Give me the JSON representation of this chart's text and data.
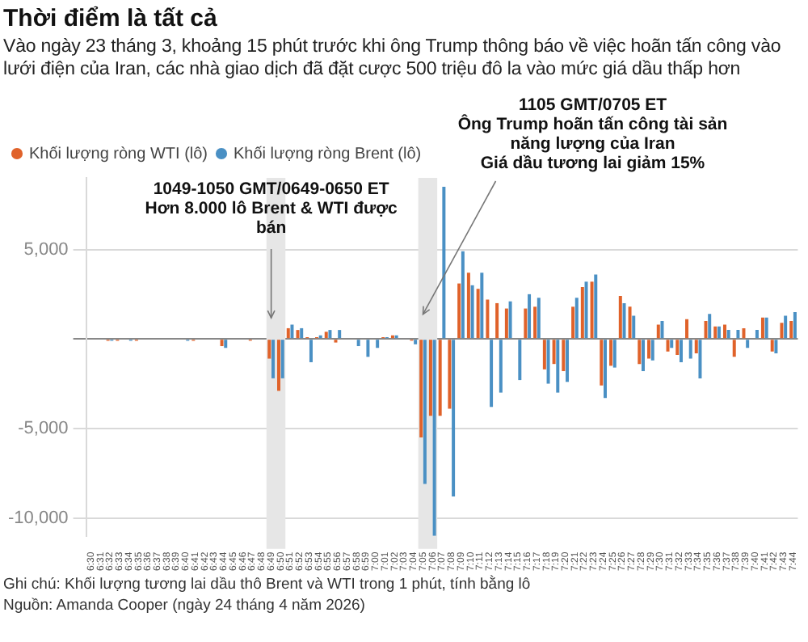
{
  "chart_data": {
    "type": "bar",
    "title": "Thời điểm là tất cả",
    "subtitle": "Vào ngày 23 tháng 3, khoảng 15 phút trước khi ông Trump thông báo về việc hoãn tấn công vào lưới điện của Iran, các nhà giao dịch đã đặt cược 500 triệu đô la vào mức giá dầu thấp hơn",
    "categories": [
      "6:30",
      "6:31",
      "6:32",
      "6:33",
      "6:34",
      "6:35",
      "6:36",
      "6:37",
      "6:38",
      "6:39",
      "6:40",
      "6:41",
      "6:42",
      "6:43",
      "6:44",
      "6:45",
      "6:46",
      "6:47",
      "6:48",
      "6:49",
      "6:50",
      "6:51",
      "6:52",
      "6:53",
      "6:54",
      "6:55",
      "6:56",
      "6:57",
      "6:58",
      "6:59",
      "7:00",
      "7:01",
      "7:02",
      "7:03",
      "7:04",
      "7:05",
      "7:06",
      "7:07",
      "7:08",
      "7:09",
      "7:10",
      "7:11",
      "7:12",
      "7:13",
      "7:14",
      "7:15",
      "7:16",
      "7:17",
      "7:18",
      "7:19",
      "7:20",
      "7:21",
      "7:22",
      "7:23",
      "7:24",
      "7:25",
      "7:26",
      "7:27",
      "7:28",
      "7:29",
      "7:30",
      "7:31",
      "7:32",
      "7:33",
      "7:34",
      "7:35",
      "7:36",
      "7:37",
      "7:38",
      "7:39",
      "7:40",
      "7:41",
      "7:42",
      "7:43",
      "7:44"
    ],
    "series": [
      {
        "name": "Khối lượng ròng WTI (lô)",
        "color": "#e0622a",
        "values": [
          0,
          0,
          -100,
          -100,
          0,
          -100,
          0,
          0,
          0,
          0,
          0,
          -100,
          0,
          0,
          -400,
          0,
          0,
          -100,
          0,
          -1100,
          -2900,
          600,
          500,
          100,
          100,
          400,
          -200,
          0,
          0,
          0,
          0,
          100,
          200,
          0,
          -100,
          -5500,
          -4300,
          -4300,
          -3900,
          3100,
          3700,
          2800,
          2200,
          2000,
          1700,
          0,
          1700,
          1800,
          -1700,
          -1400,
          -1800,
          1800,
          2900,
          3200,
          -2600,
          -1500,
          2400,
          1800,
          -1400,
          -1100,
          800,
          -700,
          -900,
          1100,
          -800,
          1000,
          700,
          800,
          -1000,
          600,
          0,
          1200,
          -700,
          900,
          1000
        ]
      },
      {
        "name": "Khối lượng ròng Brent (lô)",
        "color": "#4a90c4",
        "values": [
          0,
          0,
          -100,
          0,
          -100,
          0,
          0,
          0,
          0,
          0,
          -100,
          0,
          0,
          0,
          -500,
          0,
          0,
          0,
          0,
          -2200,
          -2200,
          800,
          600,
          -1300,
          200,
          500,
          500,
          0,
          -400,
          -1000,
          -500,
          100,
          200,
          0,
          -300,
          -8100,
          -11000,
          8500,
          -8800,
          4900,
          3000,
          3700,
          -3800,
          -3000,
          2100,
          -2300,
          2500,
          2300,
          -2500,
          -3000,
          -2400,
          2300,
          3200,
          3600,
          -3300,
          -1600,
          2000,
          1300,
          -1800,
          -1200,
          1000,
          -500,
          -1300,
          -1100,
          -2200,
          1400,
          700,
          500,
          500,
          -500,
          500,
          1200,
          -800,
          1300,
          1500
        ]
      }
    ],
    "ylim": [
      -11000,
      9000
    ],
    "yticks": [
      {
        "value": -10000,
        "label": "-10,000"
      },
      {
        "value": -5000,
        "label": "-5,000"
      },
      {
        "value": 0,
        "label": null
      },
      {
        "value": 5000,
        "label": "5,000"
      }
    ],
    "grid": "y",
    "legend": "top left",
    "bands": [
      {
        "axis": "x",
        "from": "6:49",
        "to": "6:50",
        "color": "#e6e6e6"
      },
      {
        "axis": "x",
        "from": "7:05",
        "to": "7:06",
        "color": "#e6e6e6"
      }
    ],
    "annotations": [
      {
        "text": "1049-1050 GMT/0649-0650 ET\nHơn 8.000 lô Brent & WTI được bán",
        "x": "6:49",
        "y": 1000
      },
      {
        "text": "1105 GMT/0705 ET\nÔng Trump hoãn tấn công tài sản năng lượng của Iran\nGiá dầu tương lai giảm 15%",
        "x": "7:05",
        "y": 1200
      },
      "Ghi chú: Khối lượng tương lai dầu thô Brent và WTI trong 1 phút, tính bằng lô",
      "Nguồn: Amanda Cooper (ngày 24 tháng 4 năm 2026)"
    ]
  }
}
